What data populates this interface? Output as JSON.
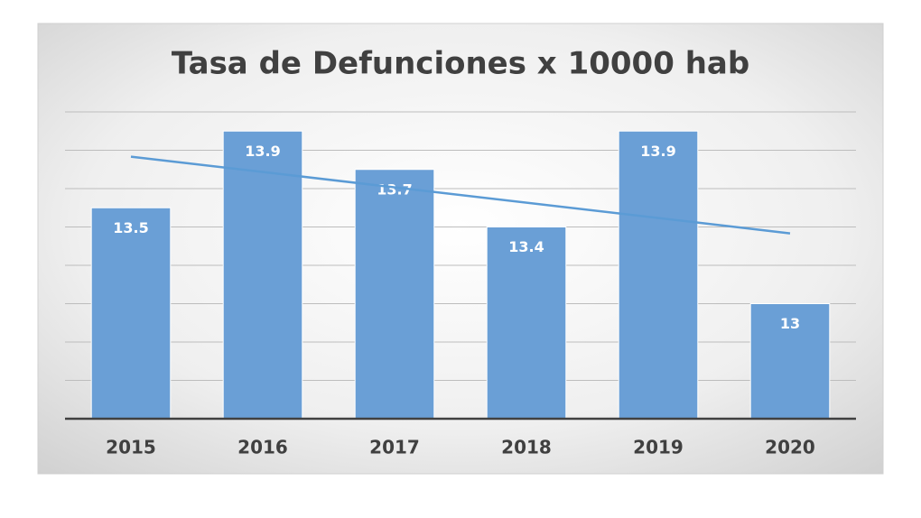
{
  "chart_data": {
    "type": "bar",
    "title": "Tasa de Defunciones x 10000 hab",
    "categories": [
      "2015",
      "2016",
      "2017",
      "2018",
      "2019",
      "2020"
    ],
    "values": [
      13.5,
      13.9,
      13.7,
      13.4,
      13.9,
      13
    ],
    "color": "#6a9fd6",
    "trendline_color": "#5b9bd5",
    "trendline": true,
    "ylim": [
      12.4,
      14.0
    ],
    "yticks": [
      12.4,
      12.6,
      12.8,
      13.0,
      13.2,
      13.4,
      13.6,
      13.8,
      14.0
    ],
    "grid": true
  }
}
